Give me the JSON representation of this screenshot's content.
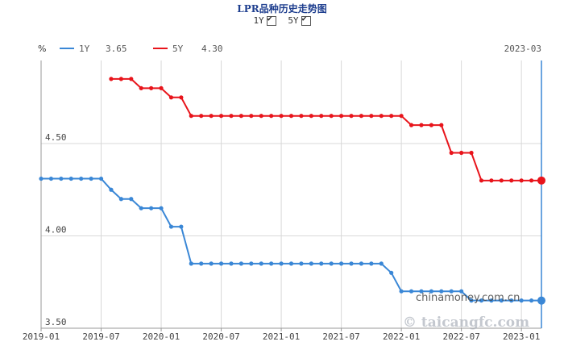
{
  "title": "LPR品种历史走势图",
  "toggles": [
    {
      "label": "1Y",
      "checked": true
    },
    {
      "label": "5Y",
      "checked": true
    }
  ],
  "legend": {
    "unit": "%",
    "items": [
      {
        "name": "1Y",
        "value": "3.65",
        "color": "#3a87d6"
      },
      {
        "name": "5Y",
        "value": "4.30",
        "color": "#e8141b"
      }
    ],
    "date": "2023-03"
  },
  "watermarks": [
    "chinamoney.com.cn",
    "© taicangfc.com"
  ],
  "chart_data": {
    "type": "line",
    "title": "LPR品种历史走势图",
    "ylabel": "%",
    "ylim": [
      3.5,
      4.95
    ],
    "yticks": [
      "4.50",
      "4.00",
      "3.50"
    ],
    "xticks": [
      "2019-01",
      "2019-07",
      "2020-01",
      "2020-07",
      "2021-01",
      "2021-07",
      "2022-01",
      "2022-07",
      "2023-01"
    ],
    "grid": true,
    "series": [
      {
        "name": "1Y",
        "color": "#3a87d6",
        "x": [
          "2019-01",
          "2019-02",
          "2019-03",
          "2019-04",
          "2019-05",
          "2019-06",
          "2019-07",
          "2019-08",
          "2019-09",
          "2019-10",
          "2019-11",
          "2019-12",
          "2020-01",
          "2020-02",
          "2020-03",
          "2020-04",
          "2020-05",
          "2020-06",
          "2020-07",
          "2020-08",
          "2020-09",
          "2020-10",
          "2020-11",
          "2020-12",
          "2021-01",
          "2021-02",
          "2021-03",
          "2021-04",
          "2021-05",
          "2021-06",
          "2021-07",
          "2021-08",
          "2021-09",
          "2021-10",
          "2021-11",
          "2021-12",
          "2022-01",
          "2022-02",
          "2022-03",
          "2022-04",
          "2022-05",
          "2022-06",
          "2022-07",
          "2022-08",
          "2022-09",
          "2022-10",
          "2022-11",
          "2022-12",
          "2023-01",
          "2023-02",
          "2023-03"
        ],
        "values": [
          4.31,
          4.31,
          4.31,
          4.31,
          4.31,
          4.31,
          4.31,
          4.25,
          4.2,
          4.2,
          4.15,
          4.15,
          4.15,
          4.05,
          4.05,
          3.85,
          3.85,
          3.85,
          3.85,
          3.85,
          3.85,
          3.85,
          3.85,
          3.85,
          3.85,
          3.85,
          3.85,
          3.85,
          3.85,
          3.85,
          3.85,
          3.85,
          3.85,
          3.85,
          3.85,
          3.8,
          3.7,
          3.7,
          3.7,
          3.7,
          3.7,
          3.7,
          3.7,
          3.65,
          3.65,
          3.65,
          3.65,
          3.65,
          3.65,
          3.65,
          3.65
        ]
      },
      {
        "name": "5Y",
        "color": "#e8141b",
        "x": [
          "2019-08",
          "2019-09",
          "2019-10",
          "2019-11",
          "2019-12",
          "2020-01",
          "2020-02",
          "2020-03",
          "2020-04",
          "2020-05",
          "2020-06",
          "2020-07",
          "2020-08",
          "2020-09",
          "2020-10",
          "2020-11",
          "2020-12",
          "2021-01",
          "2021-02",
          "2021-03",
          "2021-04",
          "2021-05",
          "2021-06",
          "2021-07",
          "2021-08",
          "2021-09",
          "2021-10",
          "2021-11",
          "2021-12",
          "2022-01",
          "2022-02",
          "2022-03",
          "2022-04",
          "2022-05",
          "2022-06",
          "2022-07",
          "2022-08",
          "2022-09",
          "2022-10",
          "2022-11",
          "2022-12",
          "2023-01",
          "2023-02",
          "2023-03"
        ],
        "values": [
          4.85,
          4.85,
          4.85,
          4.8,
          4.8,
          4.8,
          4.75,
          4.75,
          4.65,
          4.65,
          4.65,
          4.65,
          4.65,
          4.65,
          4.65,
          4.65,
          4.65,
          4.65,
          4.65,
          4.65,
          4.65,
          4.65,
          4.65,
          4.65,
          4.65,
          4.65,
          4.65,
          4.65,
          4.65,
          4.65,
          4.6,
          4.6,
          4.6,
          4.6,
          4.45,
          4.45,
          4.45,
          4.3,
          4.3,
          4.3,
          4.3,
          4.3,
          4.3,
          4.3
        ]
      }
    ]
  }
}
